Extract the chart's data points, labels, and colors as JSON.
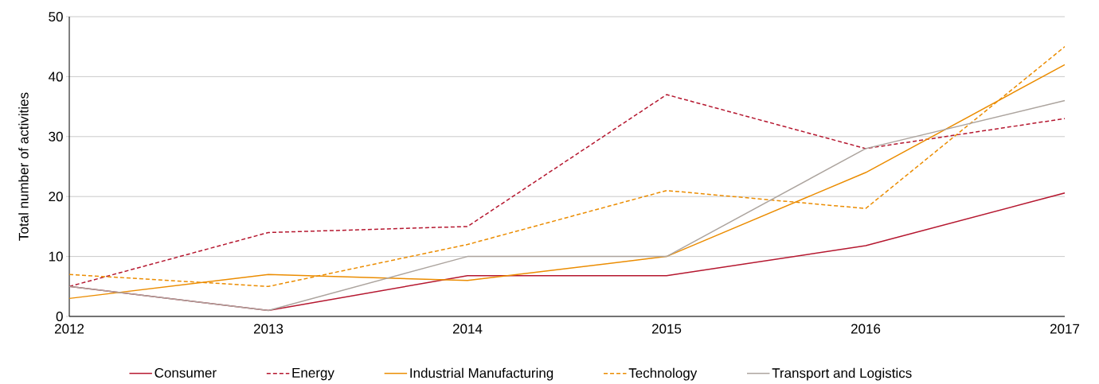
{
  "chart_data": {
    "type": "line",
    "ylabel": "Total number of activities",
    "x": [
      2012,
      2013,
      2014,
      2015,
      2016,
      2017
    ],
    "series": [
      {
        "name": "Consumer",
        "color": "#b5172f",
        "line_style": "solid",
        "values": [
          5,
          1,
          6.8,
          6.8,
          11.8,
          20.6
        ]
      },
      {
        "name": "Energy",
        "color": "#b5172f",
        "line_style": "dashed",
        "values": [
          5,
          14,
          15,
          37,
          28,
          33
        ]
      },
      {
        "name": "Industrial Manufacturing",
        "color": "#eb8c00",
        "line_style": "solid",
        "values": [
          3,
          7,
          6,
          10,
          24,
          42
        ]
      },
      {
        "name": "Technology",
        "color": "#eb8c00",
        "line_style": "dashed",
        "values": [
          7,
          5,
          12,
          21,
          18,
          45
        ]
      },
      {
        "name": "Transport and Logistics",
        "color": "#aca49e",
        "line_style": "solid",
        "values": [
          5,
          1,
          10,
          10,
          28,
          36
        ]
      }
    ],
    "xlim": [
      2012,
      2017
    ],
    "xticks": [
      2012,
      2013,
      2014,
      2015,
      2016,
      2017
    ],
    "ylim": [
      0,
      50
    ],
    "yticks": [
      0,
      10,
      20,
      30,
      40,
      50
    ],
    "grid": "y",
    "legend": "bottom",
    "marker": "none"
  }
}
